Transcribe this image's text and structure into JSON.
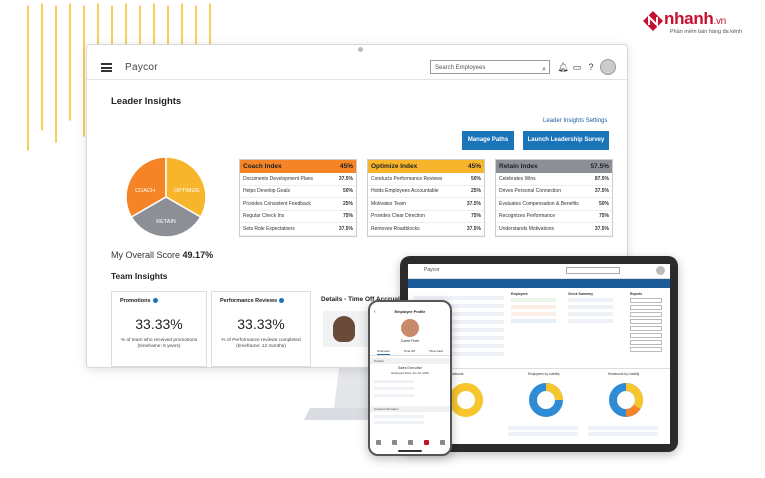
{
  "brand": {
    "name": "nhanh",
    "tld": ".vn",
    "tagline": "Phần mềm bán hàng đa kênh"
  },
  "app": {
    "logo": "Paycor",
    "search_placeholder": "Search Employees",
    "page_title": "Leader Insights",
    "settings_link": "Leader Insights Settings",
    "buttons": {
      "manage_paths": "Manage Paths",
      "launch_survey": "Launch Leadership Survey"
    },
    "pie": {
      "coach": "COACH",
      "optimize": "OPTIMIZE",
      "retain": "RETAIN"
    },
    "overall_label": "My Overall Score",
    "overall_value": "49.17%",
    "team_title": "Team Insights",
    "colors": {
      "coach": "#f58426",
      "optimize": "#f7b52c",
      "retain": "#8c9096",
      "accent": "#1b74b8"
    }
  },
  "indexes": [
    {
      "title": "Coach Index",
      "score": "45%",
      "rows": [
        {
          "label": "Documents Development Plans",
          "value": "37.5%"
        },
        {
          "label": "Helps Develop Goals",
          "value": "50%"
        },
        {
          "label": "Provides Consistent Feedback",
          "value": "25%"
        },
        {
          "label": "Regular Check Ins",
          "value": "75%"
        },
        {
          "label": "Sets Role Expectations",
          "value": "37.5%"
        }
      ]
    },
    {
      "title": "Optimize Index",
      "score": "45%",
      "rows": [
        {
          "label": "Conducts Performance Reviews",
          "value": "50%"
        },
        {
          "label": "Holds Employees Accountable",
          "value": "25%"
        },
        {
          "label": "Motivates Team",
          "value": "37.5%"
        },
        {
          "label": "Provides Clear Direction",
          "value": "75%"
        },
        {
          "label": "Removes Roadblocks",
          "value": "37.5%"
        }
      ]
    },
    {
      "title": "Retain Index",
      "score": "57.5%",
      "rows": [
        {
          "label": "Celebrates Wins",
          "value": "87.5%"
        },
        {
          "label": "Drives Personal Connection",
          "value": "37.5%"
        },
        {
          "label": "Evaluates Compensation & Benefits",
          "value": "50%"
        },
        {
          "label": "Recognizes Performance",
          "value": "75%"
        },
        {
          "label": "Understands Motivations",
          "value": "37.5%"
        }
      ]
    }
  ],
  "cards": [
    {
      "title": "Promotions",
      "value": "33.33%",
      "desc": "% of team who received promotions",
      "timeframe": "(timeframe: 5 years)"
    },
    {
      "title": "Performance Reviews",
      "value": "33.33%",
      "desc": "% of Performance reviews completed",
      "timeframe": "(timeframe: 12 months)"
    }
  ],
  "details_title": "Details - Time Off Accrual",
  "tablet": {
    "logo": "Paycor",
    "sections": [
      "Employees",
      "Check Summary",
      "Reports"
    ],
    "donut_titles": [
      "Headcount",
      "Employees by Liability",
      "Headcount by Liability"
    ]
  },
  "phone": {
    "header": "Employee Profile",
    "name": "Corrie Finer",
    "tabs": [
      "Overview",
      "Time Off",
      "Time Card"
    ],
    "position_label": "Position",
    "job_title": "Sales Executive",
    "employed_since": "Employed Since Jun 10, 2015",
    "contact_label": "Contact Information"
  }
}
